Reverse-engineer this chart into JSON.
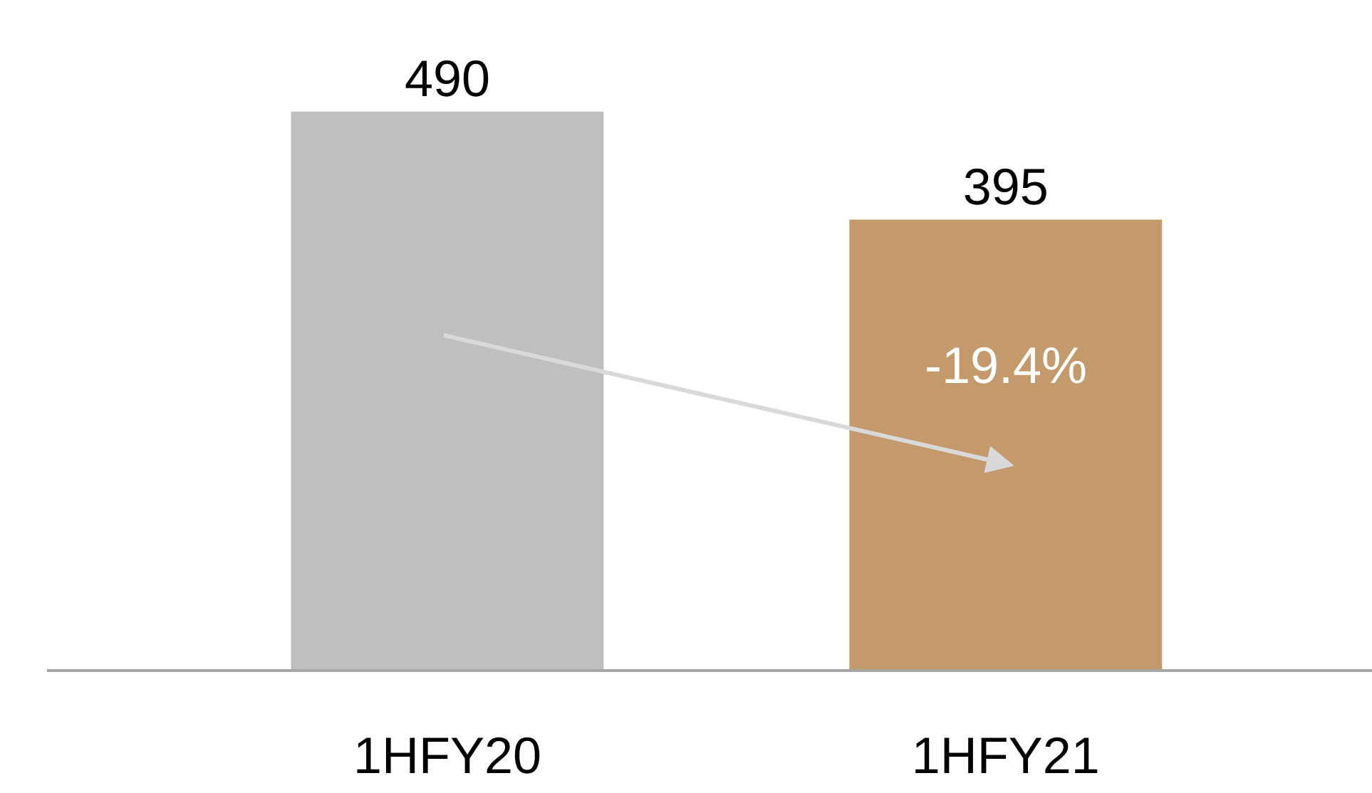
{
  "chart_data": {
    "type": "bar",
    "categories": [
      "1HFY20",
      "1HFY21"
    ],
    "values": [
      490,
      395
    ],
    "colors": [
      "#bfbfbf",
      "#c4996b"
    ],
    "data_labels": true,
    "annotations": [
      "-19.4%"
    ]
  }
}
